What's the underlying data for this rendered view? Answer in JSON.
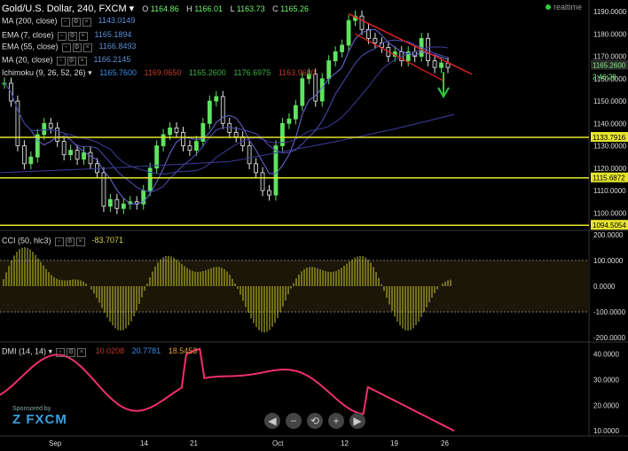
{
  "header": {
    "symbol": "Gold/U.S. Dollar, 240, FXCM",
    "ohlc": [
      {
        "label": "O",
        "value": "1164.86"
      },
      {
        "label": "H",
        "value": "1166.01"
      },
      {
        "label": "L",
        "value": "1163.73"
      },
      {
        "label": "C",
        "value": "1165.26"
      }
    ],
    "realtime": "realtime"
  },
  "indicators": [
    {
      "name": "MA (200, close)",
      "value": "1143.0149",
      "color": "#5b5bd6"
    },
    {
      "name": "EMA (7, close)",
      "value": "1165.1894",
      "color": "#5b5bd6"
    },
    {
      "name": "EMA (55, close)",
      "value": "1166.8493",
      "color": "#5b5bd6"
    },
    {
      "name": "MA (20, close)",
      "value": "1166.2145",
      "color": "#5b5bd6"
    }
  ],
  "ichimoku": {
    "name": "Ichimoku (9, 26, 52, 26)",
    "values": [
      {
        "v": "1165.7600",
        "color": "#3a8ee6"
      },
      {
        "v": "1169.0650",
        "color": "#c0392b"
      },
      {
        "v": "1165.2600",
        "color": "#3cb043"
      },
      {
        "v": "1176.6975",
        "color": "#3cb043"
      },
      {
        "v": "1163.9600",
        "color": "#c0392b"
      }
    ]
  },
  "cci_legend": {
    "name": "CCI (50, hlc3)",
    "value": "-83.7071"
  },
  "dmi_legend": {
    "name": "DMI (14, 14)",
    "values": [
      {
        "v": "10.0208",
        "color": "#c0392b"
      },
      {
        "v": "20.7781",
        "color": "#3a8ee6"
      },
      {
        "v": "18.5453",
        "color": "#e0a030"
      }
    ]
  },
  "price_labels": {
    "last": "1165.2600",
    "last2": "2:46:28",
    "support1": "1133.7916",
    "support2": "1115.6872",
    "support3": "1094.5054"
  },
  "sponsor": {
    "text": "Sponsored by",
    "brand": "FXCM"
  },
  "chart_data": [
    {
      "type": "candlestick",
      "title": "Gold/U.S. Dollar, 240, FXCM",
      "yticks": [
        1100,
        1110,
        1120,
        1130,
        1140,
        1150,
        1160,
        1170,
        1180,
        1190
      ],
      "ylim": [
        1093,
        1192
      ],
      "xlabels": [
        "Sep",
        "14",
        "21",
        "Oct",
        "12",
        "19",
        "26"
      ],
      "close_path": [
        1158,
        1150,
        1130,
        1122,
        1125,
        1135,
        1140,
        1138,
        1132,
        1126,
        1128,
        1124,
        1127,
        1122,
        1118,
        1103,
        1106,
        1102,
        1104,
        1105,
        1104,
        1110,
        1120,
        1130,
        1135,
        1138,
        1136,
        1130,
        1128,
        1132,
        1140,
        1150,
        1152,
        1140,
        1136,
        1134,
        1130,
        1122,
        1118,
        1110,
        1108,
        1130,
        1140,
        1142,
        1148,
        1160,
        1162,
        1150,
        1160,
        1168,
        1172,
        1175,
        1186,
        1188,
        1182,
        1178,
        1176,
        1174,
        1170,
        1172,
        1168,
        1172,
        1170,
        1178,
        1168,
        1165,
        1167,
        1165
      ],
      "horizontal_levels": [
        1133.7916,
        1115.6872,
        1094.5054
      ],
      "trendline": {
        "from": [
          1190,
          "16"
        ],
        "to": [
          1164,
          "27"
        ]
      }
    },
    {
      "type": "bar",
      "name": "CCI (50, hlc3)",
      "yticks": [
        200,
        100,
        0,
        -100,
        -200
      ],
      "ylim": [
        -210,
        210
      ],
      "levels": [
        100,
        -100
      ],
      "last": -83.7071
    },
    {
      "type": "line",
      "name": "DMI (14, 14)",
      "yticks": [
        40,
        30,
        20,
        10
      ],
      "ylim": [
        8,
        44
      ]
    }
  ],
  "nav": [
    "◀",
    "−",
    "⟲",
    "+",
    "▶"
  ]
}
